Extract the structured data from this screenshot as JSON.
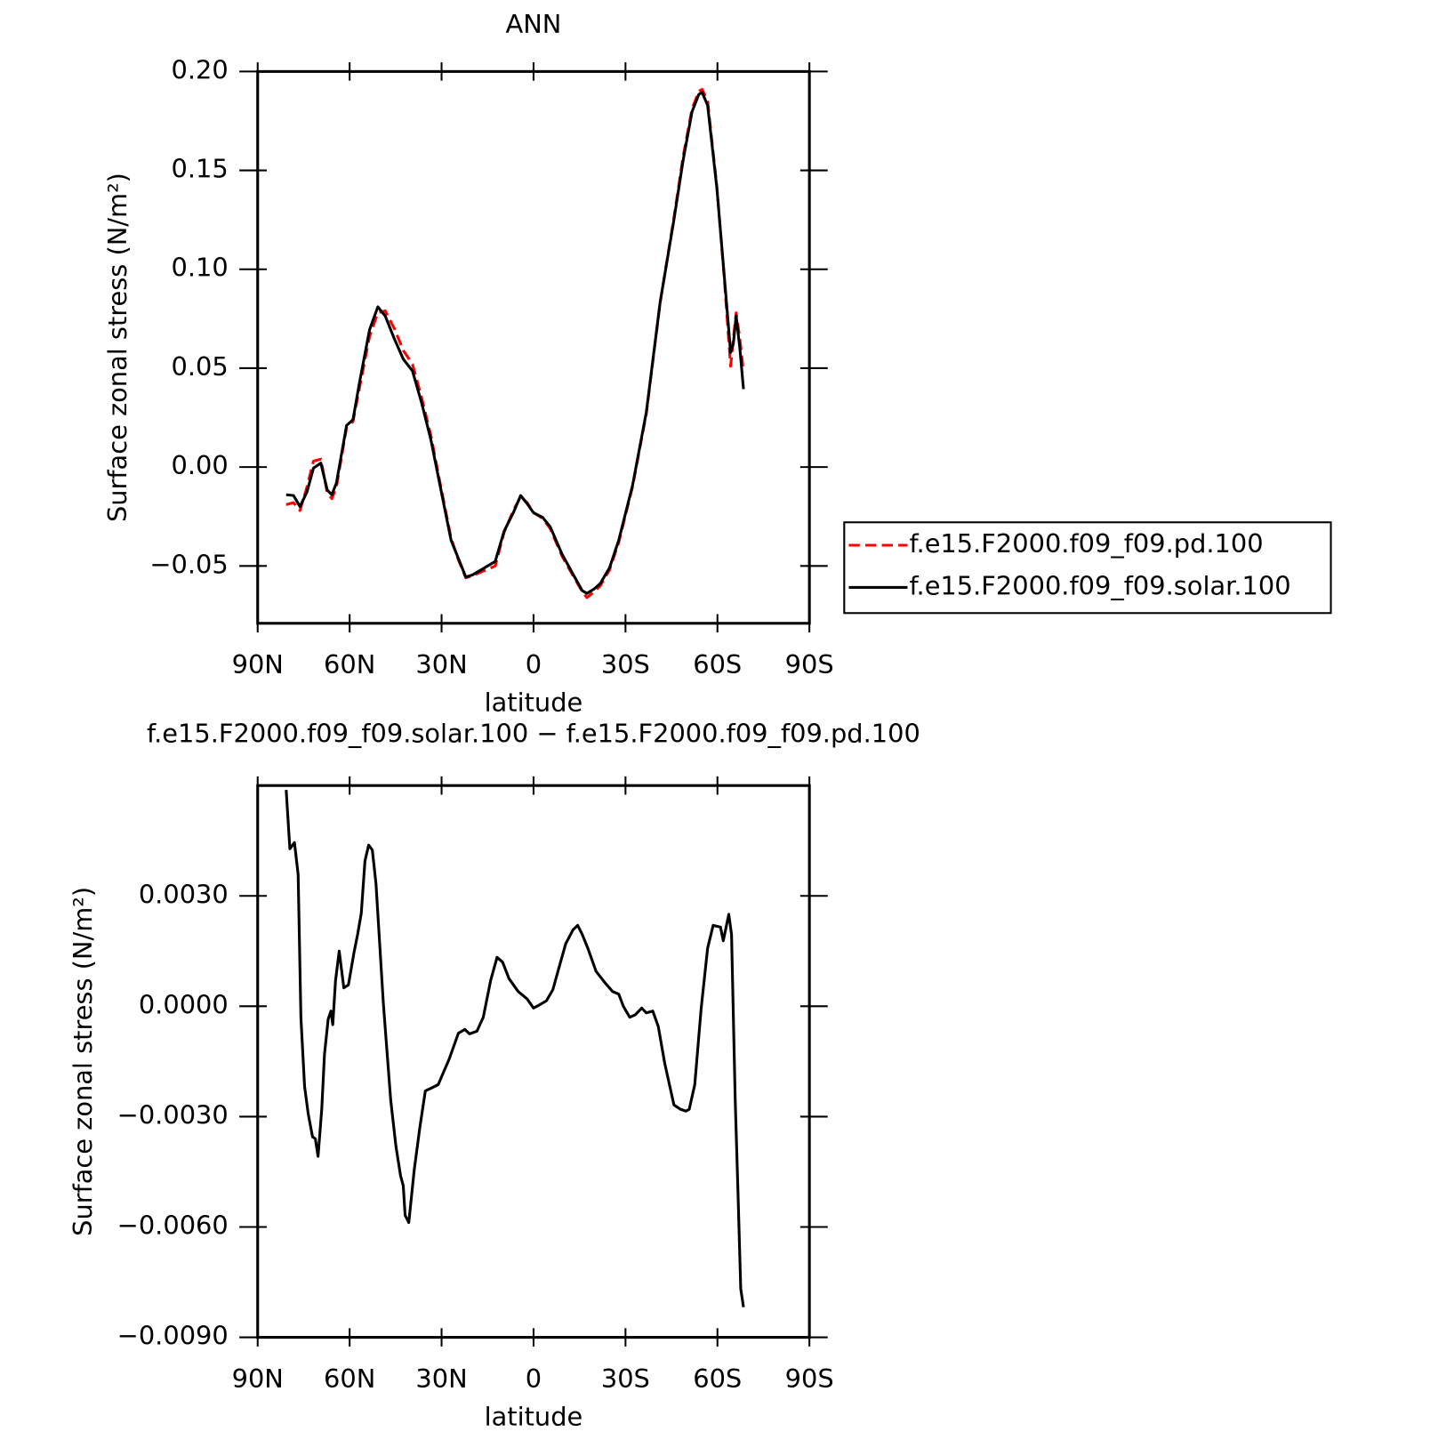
{
  "chart_data": [
    {
      "type": "line",
      "title": "ANN",
      "x_label": "latitude",
      "y_label": "Surface zonal stress (N/m²)",
      "xlim": [
        90,
        -90
      ],
      "ylim": [
        -0.079,
        0.2
      ],
      "xticks": [
        {
          "value": 90,
          "label": "90N"
        },
        {
          "value": 60,
          "label": "60N"
        },
        {
          "value": 30,
          "label": "30N"
        },
        0,
        {
          "value": -30,
          "label": "30S"
        },
        {
          "value": -60,
          "label": "60S"
        },
        {
          "value": -90,
          "label": "90S"
        }
      ],
      "yticks": [
        {
          "value": -0.05,
          "label": "−0.05"
        },
        {
          "value": 0,
          "label": "0.00"
        },
        {
          "value": 0.05,
          "label": "0.05"
        },
        {
          "value": 0.1,
          "label": "0.10"
        },
        {
          "value": 0.15,
          "label": "0.15"
        },
        {
          "value": 0.2,
          "label": "0.20"
        }
      ],
      "legend_position": "right",
      "x": [
        80.7,
        78.3,
        76.2,
        73.9,
        71.8,
        69.4,
        67.3,
        65.8,
        64.3,
        61.0,
        58.9,
        56.8,
        53.5,
        50.8,
        48.4,
        45.4,
        42.5,
        39.5,
        36.5,
        33.5,
        30.5,
        26.9,
        24.5,
        22.1,
        20.0,
        17.0,
        12.5,
        9.6,
        6.6,
        4.2,
        2.1,
        0.0,
        -3.0,
        -5.4,
        -9.3,
        -12.9,
        -15.9,
        -17.4,
        -19.8,
        -21.8,
        -24.8,
        -27.8,
        -32.3,
        -36.8,
        -41.3,
        -45.8,
        -48.8,
        -51.7,
        -53.9,
        -55.0,
        -56.8,
        -59.8,
        -62.2,
        -64.3,
        -65.2,
        -66.1,
        -67.3,
        -68.5
      ],
      "series": [
        {
          "name": "f.e15.F2000.f09_f09.pd.100",
          "color": "#ff0000",
          "line_style": "dashed",
          "values": [
            -0.019,
            -0.018,
            -0.022,
            -0.01,
            0.003,
            0.004,
            -0.013,
            -0.016,
            -0.01,
            0.02,
            0.023,
            0.04,
            0.066,
            0.078,
            0.079,
            0.07,
            0.059,
            0.052,
            0.035,
            0.016,
            -0.008,
            -0.036,
            -0.047,
            -0.056,
            -0.055,
            -0.053,
            -0.05,
            -0.033,
            -0.022,
            -0.015,
            -0.018,
            -0.023,
            -0.026,
            -0.031,
            -0.045,
            -0.055,
            -0.063,
            -0.066,
            -0.063,
            -0.06,
            -0.052,
            -0.038,
            -0.01,
            0.027,
            0.083,
            0.126,
            0.157,
            0.181,
            0.19,
            0.191,
            0.185,
            0.142,
            0.096,
            0.051,
            0.065,
            0.078,
            0.065,
            0.048
          ]
        },
        {
          "name": "f.e15.F2000.f09_f09.solar.100",
          "color": "#000000",
          "line_style": "solid",
          "values": [
            -0.014,
            -0.0144,
            -0.02,
            -0.0125,
            -0.0005,
            0.002,
            -0.0116,
            -0.014,
            -0.008,
            0.021,
            0.024,
            0.0426,
            0.0694,
            0.081,
            0.0764,
            0.0648,
            0.0546,
            0.0486,
            0.0324,
            0.0139,
            -0.0093,
            -0.037,
            -0.0463,
            -0.0556,
            -0.0546,
            -0.0519,
            -0.0477,
            -0.0324,
            -0.0231,
            -0.0144,
            -0.0185,
            -0.0231,
            -0.0255,
            -0.0301,
            -0.044,
            -0.0542,
            -0.0625,
            -0.0639,
            -0.0616,
            -0.0588,
            -0.0509,
            -0.037,
            -0.0093,
            0.0278,
            0.0833,
            0.125,
            0.1551,
            0.1796,
            0.1884,
            0.1894,
            0.1829,
            0.1412,
            0.0972,
            0.0579,
            0.0625,
            0.0764,
            0.0602,
            0.0394
          ]
        }
      ]
    },
    {
      "type": "line",
      "title": "f.e15.F2000.f09_f09.solar.100 − f.e15.F2000.f09_f09.pd.100",
      "x_label": "latitude",
      "y_label": "Surface zonal stress (N/m²)",
      "xlim": [
        90,
        -90
      ],
      "ylim": [
        -0.009,
        0.006
      ],
      "xticks": [
        {
          "value": 90,
          "label": "90N"
        },
        {
          "value": 60,
          "label": "60N"
        },
        {
          "value": 30,
          "label": "30N"
        },
        0,
        {
          "value": -30,
          "label": "30S"
        },
        {
          "value": -60,
          "label": "60S"
        },
        {
          "value": -90,
          "label": "90S"
        }
      ],
      "yticks": [
        {
          "value": -0.009,
          "label": "−0.0090"
        },
        {
          "value": -0.006,
          "label": "−0.0060"
        },
        {
          "value": -0.003,
          "label": "−0.0030"
        },
        {
          "value": 0,
          "label": "0.0000"
        },
        {
          "value": 0.003,
          "label": "0.0030"
        }
      ],
      "x": [
        80.7,
        79.5,
        78.0,
        76.8,
        75.9,
        74.7,
        73.5,
        72.1,
        71.2,
        70.3,
        69.1,
        68.2,
        67.0,
        66.1,
        65.5,
        64.6,
        63.4,
        61.9,
        60.4,
        58.6,
        57.4,
        56.2,
        55.0,
        53.8,
        52.6,
        51.4,
        49.0,
        46.6,
        44.9,
        43.4,
        42.5,
        41.9,
        40.7,
        38.9,
        37.1,
        35.3,
        33.5,
        31.1,
        27.5,
        24.5,
        22.4,
        20.9,
        18.5,
        16.4,
        14.0,
        11.9,
        10.1,
        8.0,
        5.0,
        2.1,
        0.0,
        -1.8,
        -4.2,
        -6.3,
        -8.4,
        -10.5,
        -12.9,
        -14.4,
        -15.9,
        -17.7,
        -20.4,
        -23.4,
        -25.8,
        -27.8,
        -29.3,
        -31.4,
        -33.2,
        -35.3,
        -36.8,
        -38.9,
        -40.7,
        -42.8,
        -45.8,
        -47.9,
        -49.7,
        -50.8,
        -52.6,
        -54.7,
        -56.8,
        -58.6,
        -61.0,
        -61.9,
        -63.7,
        -64.6,
        -65.8,
        -66.7,
        -67.6,
        -68.5
      ],
      "series": [
        {
          "color": "#000000",
          "line_style": "solid",
          "values": [
            0.00588,
            0.00428,
            0.00445,
            0.00358,
            -0.0003,
            -0.00218,
            -0.00293,
            -0.00355,
            -0.0036,
            -0.00408,
            -0.0028,
            -0.0013,
            -0.00035,
            -0.00013,
            -0.0005,
            0.0007,
            0.0015,
            0.0005,
            0.00058,
            0.00145,
            0.00195,
            0.00253,
            0.00395,
            0.00438,
            0.00425,
            0.00333,
            8e-05,
            -0.00255,
            -0.0038,
            -0.0046,
            -0.00488,
            -0.00568,
            -0.00588,
            -0.00443,
            -0.0033,
            -0.0023,
            -0.00223,
            -0.00213,
            -0.00143,
            -0.00073,
            -0.00063,
            -0.00075,
            -0.00068,
            -0.0003,
            0.0007,
            0.00133,
            0.0012,
            0.00075,
            0.0004,
            0.0002,
            -5e-05,
            3e-05,
            0.00015,
            0.00045,
            0.00108,
            0.0017,
            0.00208,
            0.0022,
            0.00195,
            0.00158,
            0.00095,
            0.00063,
            0.0004,
            0.00033,
            0.0,
            -0.0003,
            -0.00023,
            -5e-05,
            -0.00018,
            -0.00013,
            -0.00055,
            -0.00155,
            -0.00268,
            -0.0028,
            -0.00285,
            -0.0028,
            -0.00213,
            -5e-05,
            0.00158,
            0.0022,
            0.00215,
            0.00178,
            0.0025,
            0.00195,
            -0.00255,
            -0.00505,
            -0.00768,
            -0.00818
          ]
        }
      ]
    }
  ]
}
